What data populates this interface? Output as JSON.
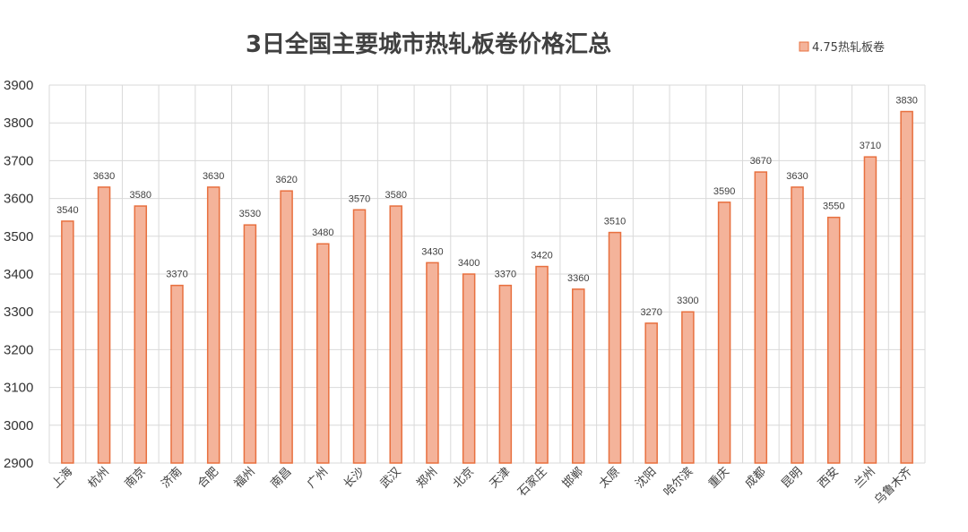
{
  "chart_data": {
    "type": "bar",
    "title": "3日全国主要城市热轧板卷价格汇总",
    "xlabel": "",
    "ylabel": "",
    "ylim": [
      2900,
      3900
    ],
    "yticks": [
      2900,
      3000,
      3100,
      3200,
      3300,
      3400,
      3500,
      3600,
      3700,
      3800,
      3900
    ],
    "grid": true,
    "legend_position": "top-right",
    "series": [
      {
        "name": "4.75热轧板卷",
        "color": "#f4b39a",
        "edge_color": "#e8703f",
        "values": [
          3540,
          3630,
          3580,
          3370,
          3630,
          3530,
          3620,
          3480,
          3570,
          3580,
          3430,
          3400,
          3370,
          3420,
          3360,
          3510,
          3270,
          3300,
          3590,
          3670,
          3630,
          3550,
          3710,
          3830
        ]
      }
    ],
    "categories": [
      "上海",
      "杭州",
      "南京",
      "济南",
      "合肥",
      "福州",
      "南昌",
      "广州",
      "长沙",
      "武汉",
      "郑州",
      "北京",
      "天津",
      "石家庄",
      "邯郸",
      "太原",
      "沈阳",
      "哈尔滨",
      "重庆",
      "成都",
      "昆明",
      "西安",
      "兰州",
      "乌鲁木齐"
    ]
  }
}
